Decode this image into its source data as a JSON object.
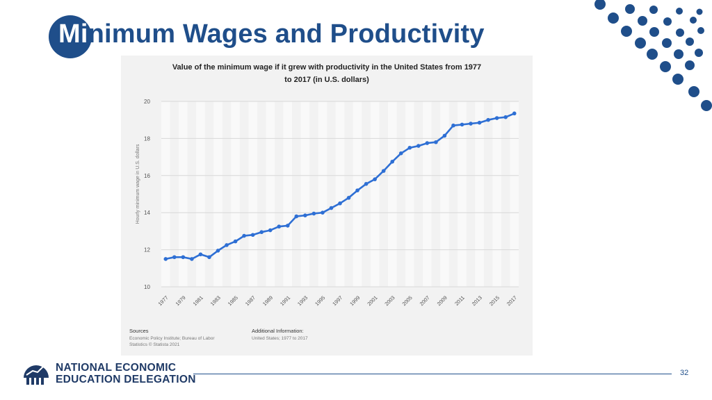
{
  "slide": {
    "title_first": "Mi",
    "title_rest": "nimum Wages and Productivity",
    "page_number": "32",
    "accent_color": "#1f4e8a"
  },
  "footer": {
    "org_line1": "NATIONAL ECONOMIC",
    "org_line2": "EDUCATION DELEGATION"
  },
  "chart_data": {
    "type": "line",
    "title_line1": "Value of the minimum wage if it grew with productivity in the United States from 1977",
    "title_line2": "to 2017 (in U.S. dollars)",
    "ylabel": "Hourly minimum wage in U.S. dollars",
    "xlabel": "",
    "ylim": [
      10,
      20
    ],
    "yticks": [
      10,
      12,
      14,
      16,
      18,
      20
    ],
    "xtick_labels": [
      "1977",
      "1979",
      "1981",
      "1983",
      "1985",
      "1987",
      "1989",
      "1991",
      "1993",
      "1995",
      "1997",
      "1999",
      "2001",
      "2003",
      "2005",
      "2007",
      "2009",
      "2011",
      "2013",
      "2015",
      "2017"
    ],
    "x": [
      1977,
      1978,
      1979,
      1980,
      1981,
      1982,
      1983,
      1984,
      1985,
      1986,
      1987,
      1988,
      1989,
      1990,
      1991,
      1992,
      1993,
      1994,
      1995,
      1996,
      1997,
      1998,
      1999,
      2000,
      2001,
      2002,
      2003,
      2004,
      2005,
      2006,
      2007,
      2008,
      2009,
      2010,
      2011,
      2012,
      2013,
      2014,
      2015,
      2016,
      2017
    ],
    "values": [
      11.5,
      11.6,
      11.6,
      11.5,
      11.75,
      11.6,
      11.95,
      12.25,
      12.45,
      12.75,
      12.8,
      12.95,
      13.05,
      13.25,
      13.3,
      13.8,
      13.85,
      13.95,
      14.0,
      14.25,
      14.5,
      14.8,
      15.2,
      15.55,
      15.8,
      16.25,
      16.75,
      17.2,
      17.5,
      17.6,
      17.75,
      17.8,
      18.15,
      18.7,
      18.75,
      18.8,
      18.85,
      19.0,
      19.1,
      19.15,
      19.35
    ],
    "line_color": "#2e6fd4",
    "grid": true,
    "sources_heading": "Sources",
    "sources_text": "Economic Policy Institute; Bureau of Labor Statistics © Statista 2021",
    "additional_heading": "Additional Information:",
    "additional_text": "United States; 1977 to 2017"
  }
}
